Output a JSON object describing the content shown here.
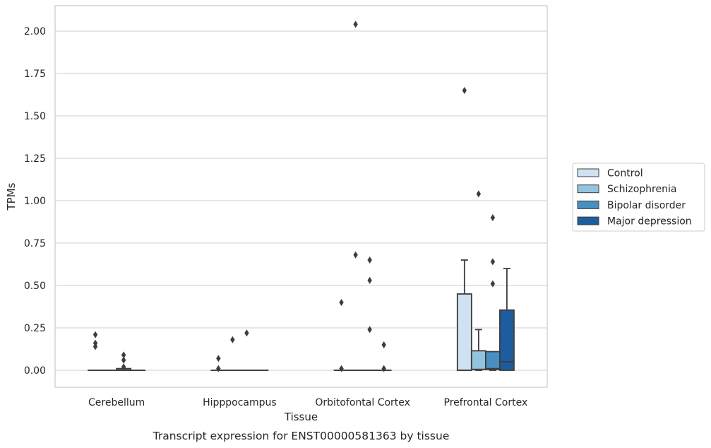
{
  "chart_data": {
    "type": "box",
    "title": "",
    "caption": "Transcript expression for ENST00000581363 by tissue",
    "xlabel": "Tissue",
    "ylabel": "TPMs",
    "ylim": [
      -0.1,
      2.15
    ],
    "yticks": [
      "0.00",
      "0.25",
      "0.50",
      "0.75",
      "1.00",
      "1.25",
      "1.50",
      "1.75",
      "2.00"
    ],
    "ytick_values": [
      0,
      0.25,
      0.5,
      0.75,
      1.0,
      1.25,
      1.5,
      1.75,
      2.0
    ],
    "grid": true,
    "legend_position": "right",
    "categories": [
      "Cerebellum",
      "Hipppocampus",
      "Orbitofontal Cortex",
      "Prefrontal Cortex"
    ],
    "series": [
      {
        "name": "Control",
        "color": "#cfe1f2",
        "boxes": [
          {
            "q1": 0,
            "median": 0,
            "q3": 0,
            "whisker_low": 0,
            "whisker_high": 0,
            "outliers": [
              0.21,
              0.16,
              0.14
            ]
          },
          {
            "q1": 0,
            "median": 0,
            "q3": 0,
            "whisker_low": 0,
            "whisker_high": 0,
            "outliers": [
              0.07,
              0.01
            ]
          },
          {
            "q1": 0,
            "median": 0,
            "q3": 0,
            "whisker_low": 0,
            "whisker_high": 0,
            "outliers": [
              0.4,
              0.01
            ]
          },
          {
            "q1": 0,
            "median": 0,
            "q3": 0.45,
            "whisker_low": 0,
            "whisker_high": 0.65,
            "outliers": [
              1.65
            ]
          }
        ]
      },
      {
        "name": "Schizophrenia",
        "color": "#93c4de",
        "boxes": [
          {
            "q1": 0,
            "median": 0,
            "q3": 0,
            "whisker_low": 0,
            "whisker_high": 0,
            "outliers": []
          },
          {
            "q1": 0,
            "median": 0,
            "q3": 0,
            "whisker_low": 0,
            "whisker_high": 0,
            "outliers": [
              0.18
            ]
          },
          {
            "q1": 0,
            "median": 0,
            "q3": 0,
            "whisker_low": 0,
            "whisker_high": 0,
            "outliers": [
              2.04,
              0.68
            ]
          },
          {
            "q1": 0.005,
            "median": 0.005,
            "q3": 0.115,
            "whisker_low": 0,
            "whisker_high": 0.24,
            "outliers": [
              1.04
            ]
          }
        ]
      },
      {
        "name": "Bipolar disorder",
        "color": "#4a8fc1",
        "boxes": [
          {
            "q1": 0,
            "median": 0,
            "q3": 0.01,
            "whisker_low": 0,
            "whisker_high": 0.01,
            "outliers": [
              0.09,
              0.06,
              0.02
            ]
          },
          {
            "q1": 0,
            "median": 0,
            "q3": 0,
            "whisker_low": 0,
            "whisker_high": 0,
            "outliers": [
              0.22
            ]
          },
          {
            "q1": 0,
            "median": 0,
            "q3": 0,
            "whisker_low": 0,
            "whisker_high": 0,
            "outliers": [
              0.65,
              0.53,
              0.24
            ]
          },
          {
            "q1": 0.005,
            "median": 0.01,
            "q3": 0.11,
            "whisker_low": 0,
            "whisker_high": 0.11,
            "outliers": [
              0.9,
              0.64,
              0.51
            ]
          }
        ]
      },
      {
        "name": "Major depression",
        "color": "#1d5d9f",
        "boxes": [
          {
            "q1": 0,
            "median": 0,
            "q3": 0,
            "whisker_low": 0,
            "whisker_high": 0,
            "outliers": []
          },
          {
            "q1": 0,
            "median": 0,
            "q3": 0,
            "whisker_low": 0,
            "whisker_high": 0,
            "outliers": []
          },
          {
            "q1": 0,
            "median": 0,
            "q3": 0,
            "whisker_low": 0,
            "whisker_high": 0,
            "outliers": [
              0.15,
              0.01
            ]
          },
          {
            "q1": 0,
            "median": 0.05,
            "q3": 0.355,
            "whisker_low": 0,
            "whisker_high": 0.6,
            "outliers": []
          }
        ]
      }
    ]
  }
}
